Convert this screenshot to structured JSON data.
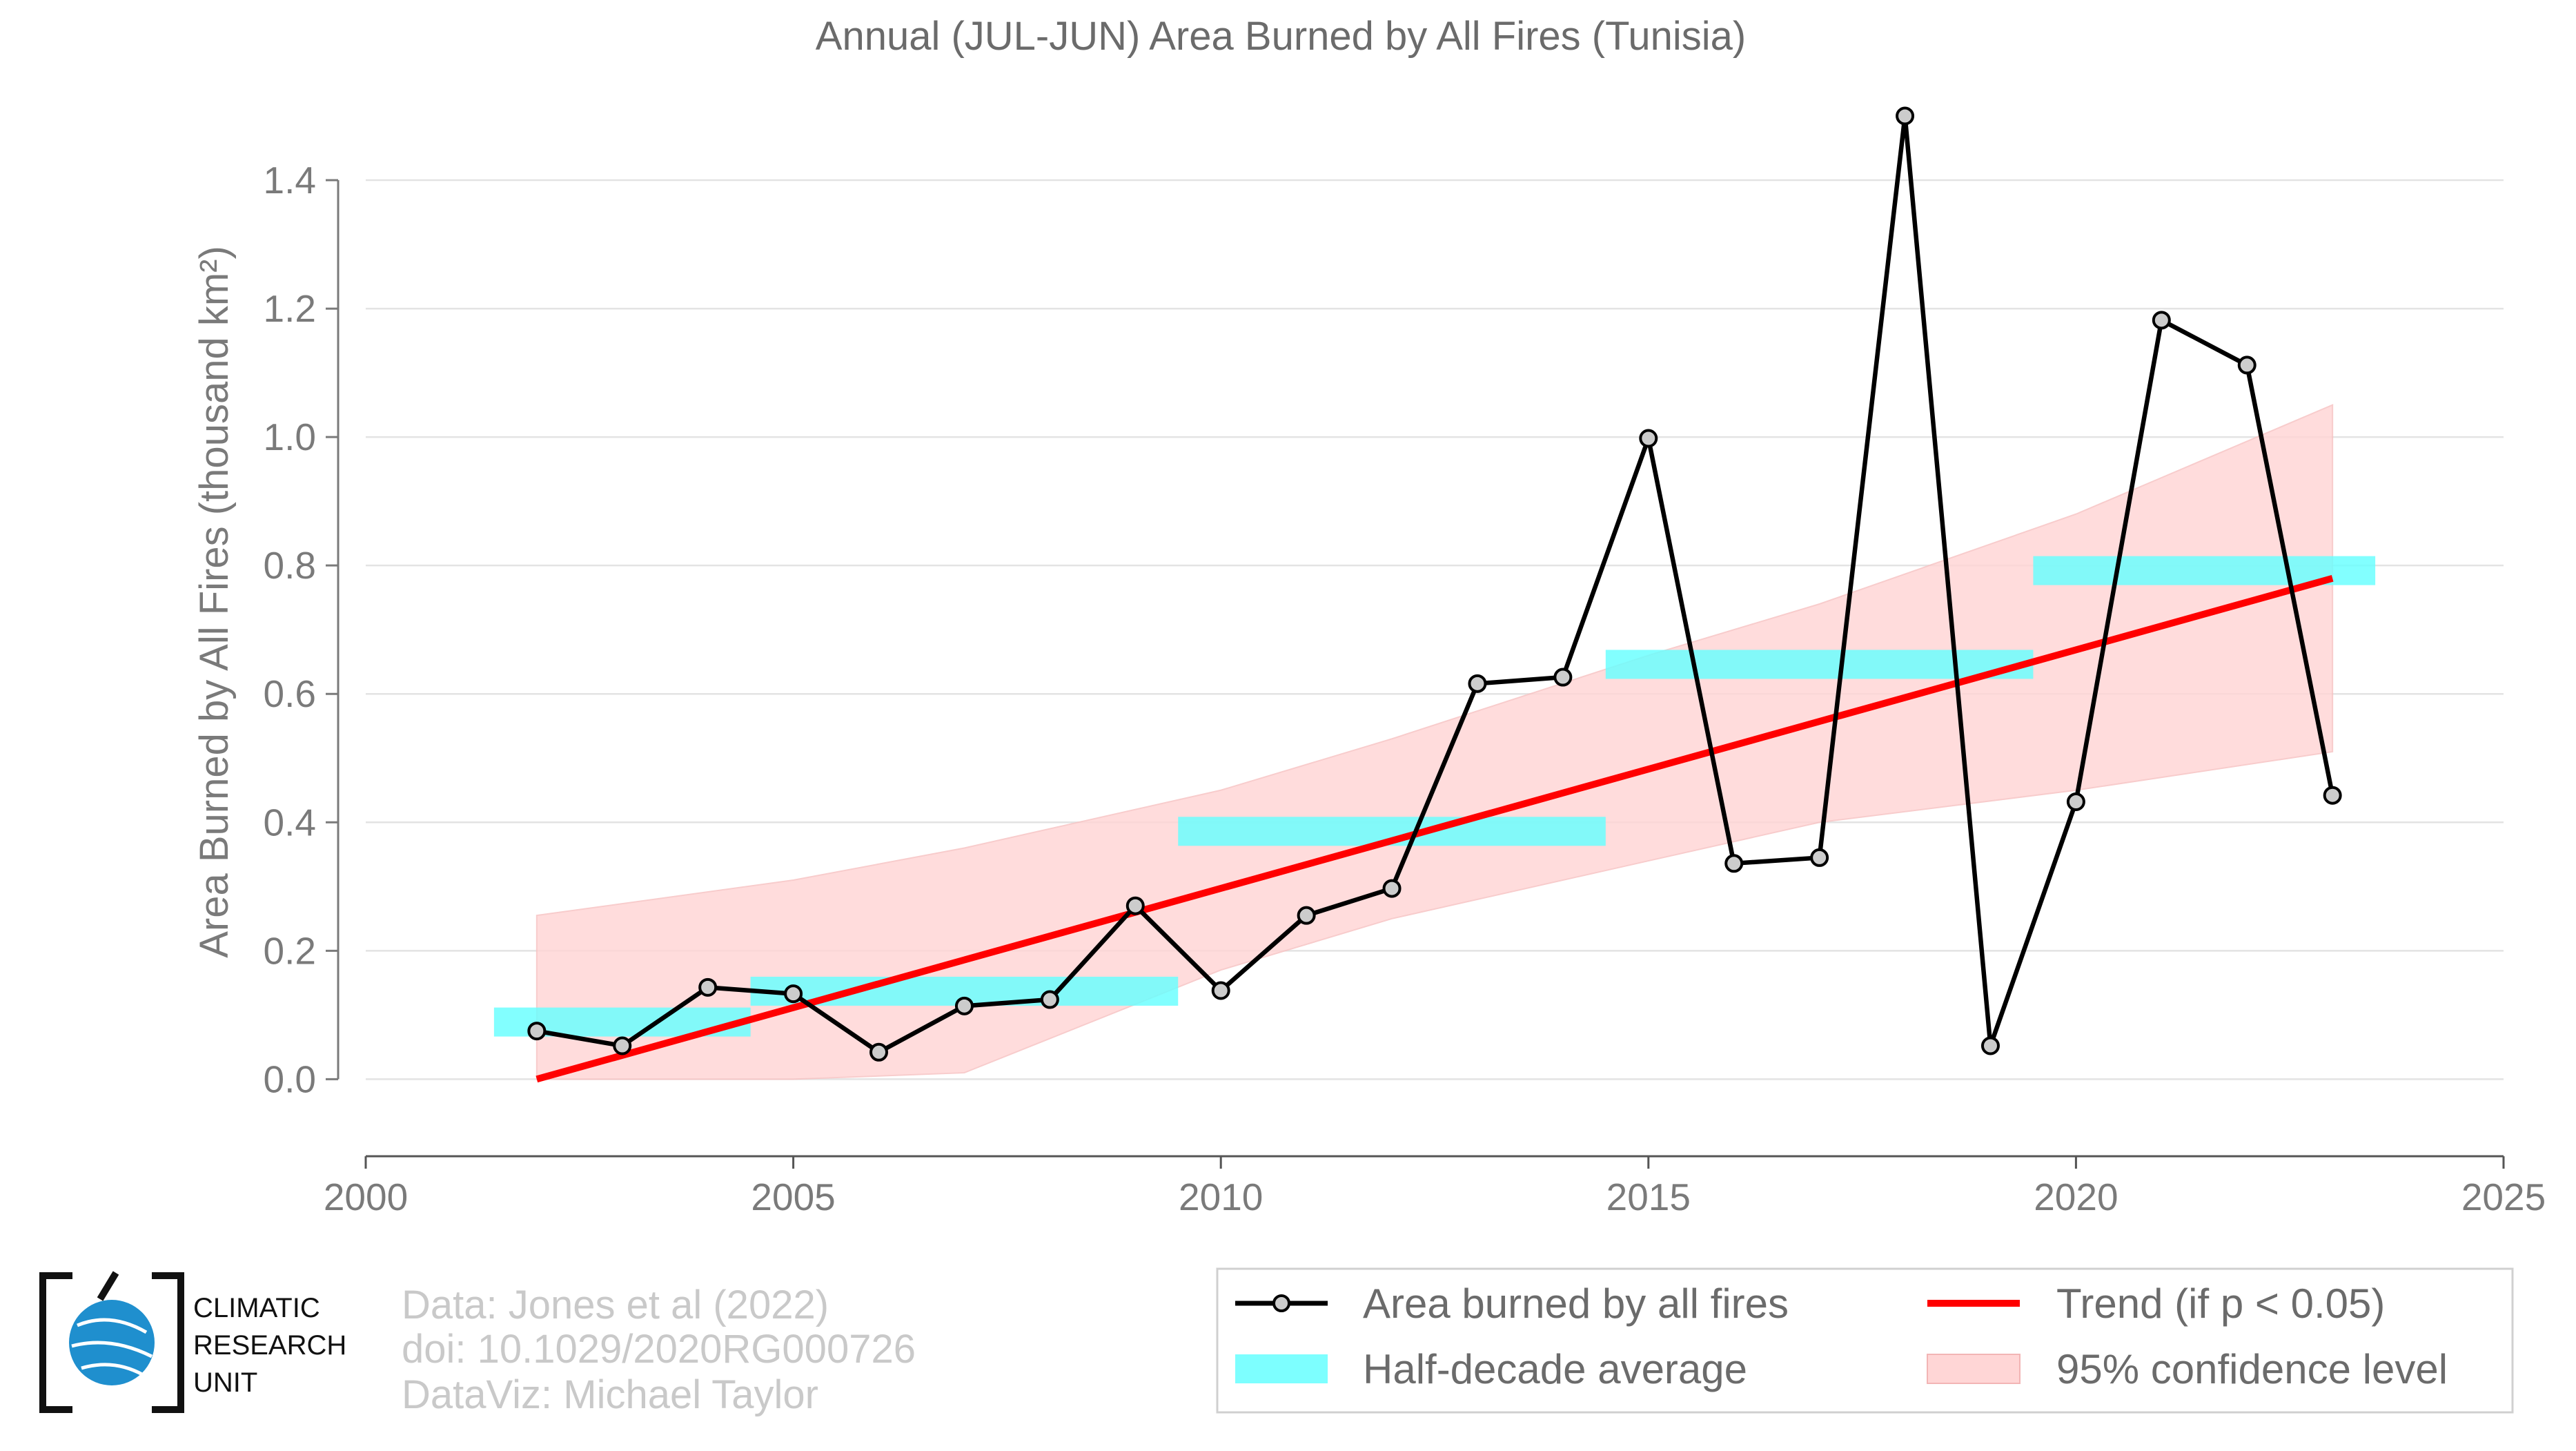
{
  "colors": {
    "line": "#000000",
    "marker_fill": "#cccccc",
    "trend": "#ff0000",
    "half_decade": "#66ffff",
    "confidence": "#ffd6d6",
    "grid": "#e3e3e3",
    "text": "#7a7a7a",
    "logo_blue": "#1f8fce"
  },
  "credits": {
    "line1": "Data: Jones et al (2022)",
    "line2": "doi: 10.1029/2020RG000726",
    "line3": "DataViz: Michael Taylor"
  },
  "logo": {
    "line1": "CLIMATIC",
    "line2": "RESEARCH",
    "line3": "UNIT",
    "icon": "globe-icon"
  },
  "chart_data": {
    "type": "line",
    "title": "Annual (JUL-JUN) Area Burned by All Fires (Tunisia)",
    "ylabel": "Area Burned by All Fires (thousand km²)",
    "xlabel": "",
    "xlim": [
      2000,
      2025
    ],
    "ylim": [
      -0.12,
      1.5
    ],
    "xticks": [
      2000,
      2005,
      2010,
      2015,
      2020,
      2025
    ],
    "yticks": [
      0.0,
      0.2,
      0.4,
      0.6,
      0.8,
      1.0,
      1.2,
      1.4
    ],
    "grid": true,
    "legend_position": "bottom-right",
    "series": [
      {
        "name": "Area burned by all fires",
        "kind": "line-marker",
        "x": [
          2002,
          2003,
          2004,
          2005,
          2006,
          2007,
          2008,
          2009,
          2010,
          2011,
          2012,
          2013,
          2014,
          2015,
          2016,
          2017,
          2018,
          2019,
          2020,
          2021,
          2022,
          2023
        ],
        "y": [
          0.075,
          0.052,
          0.143,
          0.133,
          0.042,
          0.114,
          0.124,
          0.27,
          0.138,
          0.255,
          0.297,
          0.616,
          0.626,
          0.998,
          0.336,
          0.345,
          1.5,
          0.052,
          0.432,
          1.182,
          1.112,
          0.442
        ]
      },
      {
        "name": "Half-decade average",
        "kind": "bars",
        "segments": [
          {
            "x0": 2001.5,
            "x1": 2004.5,
            "y": 0.089
          },
          {
            "x0": 2004.5,
            "x1": 2009.5,
            "y": 0.137
          },
          {
            "x0": 2009.5,
            "x1": 2014.5,
            "y": 0.386
          },
          {
            "x0": 2014.5,
            "x1": 2019.5,
            "y": 0.646
          },
          {
            "x0": 2019.5,
            "x1": 2023.5,
            "y": 0.792
          }
        ]
      },
      {
        "name": "Trend (if p < 0.05)",
        "kind": "trend",
        "x": [
          2002,
          2023
        ],
        "y": [
          0.0,
          0.78
        ]
      },
      {
        "name": "95% confidence level",
        "kind": "band",
        "x": [
          2002,
          2005,
          2007,
          2010,
          2012,
          2015,
          2017,
          2020,
          2023
        ],
        "upper": [
          0.255,
          0.31,
          0.36,
          0.45,
          0.53,
          0.66,
          0.74,
          0.88,
          1.05
        ],
        "lower": [
          0.0,
          0.0,
          0.01,
          0.17,
          0.25,
          0.34,
          0.4,
          0.45,
          0.51
        ]
      }
    ]
  }
}
